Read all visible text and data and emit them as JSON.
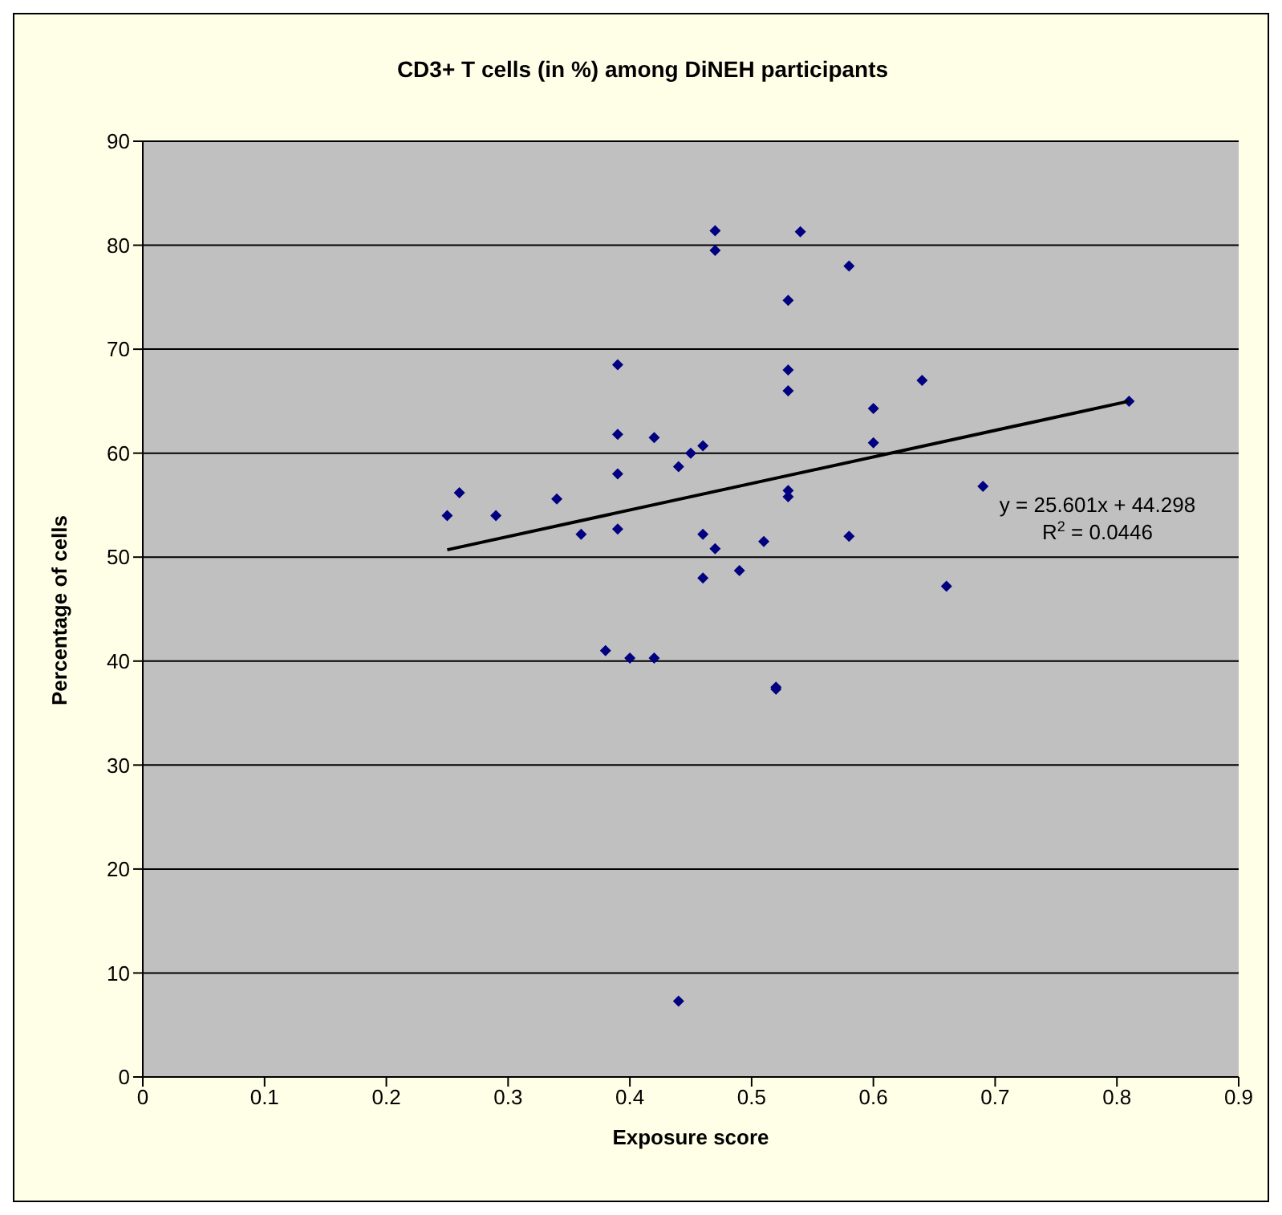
{
  "chart_data": {
    "type": "scatter",
    "title": "CD3+ T cells (in %) among DiNEH participants",
    "xlabel": "Exposure score",
    "ylabel": "Percentage of cells",
    "xlim": [
      0,
      0.9
    ],
    "xticks": [
      0,
      0.1,
      0.2,
      0.3,
      0.4,
      0.5,
      0.6,
      0.7,
      0.8,
      0.9
    ],
    "ylim": [
      0,
      90
    ],
    "yticks": [
      0,
      10,
      20,
      30,
      40,
      50,
      60,
      70,
      80,
      90
    ],
    "grid": "y",
    "marker": "diamond",
    "annotations": [
      "y = 25.601x + 44.298",
      "R$^{2}$ = 0.0446"
    ],
    "series": [
      {
        "color": "#000080",
        "x": [
          0.25,
          0.26,
          0.29,
          0.34,
          0.36,
          0.38,
          0.39,
          0.39,
          0.39,
          0.39,
          0.4,
          0.42,
          0.42,
          0.44,
          0.44,
          0.45,
          0.46,
          0.46,
          0.46,
          0.47,
          0.47,
          0.47,
          0.49,
          0.51,
          0.52,
          0.52,
          0.53,
          0.53,
          0.53,
          0.53,
          0.53,
          0.54,
          0.58,
          0.58,
          0.6,
          0.6,
          0.64,
          0.66,
          0.69,
          0.81
        ],
        "values": [
          54,
          56.2,
          54,
          55.6,
          52.2,
          41,
          68.5,
          61.8,
          58,
          52.7,
          40.3,
          61.5,
          40.3,
          58.7,
          7.3,
          60,
          60.7,
          52.2,
          48,
          81.4,
          79.5,
          50.8,
          48.7,
          51.5,
          37.5,
          37.3,
          74.7,
          68,
          66,
          56.4,
          55.8,
          81.3,
          78,
          52,
          64.3,
          61,
          67,
          47.2,
          56.8,
          65
        ]
      },
      {
        "type": "line",
        "color": "#000000",
        "x": [
          0.25,
          0.81
        ],
        "values": [
          50.7,
          65.0
        ],
        "marker": "none"
      }
    ]
  }
}
